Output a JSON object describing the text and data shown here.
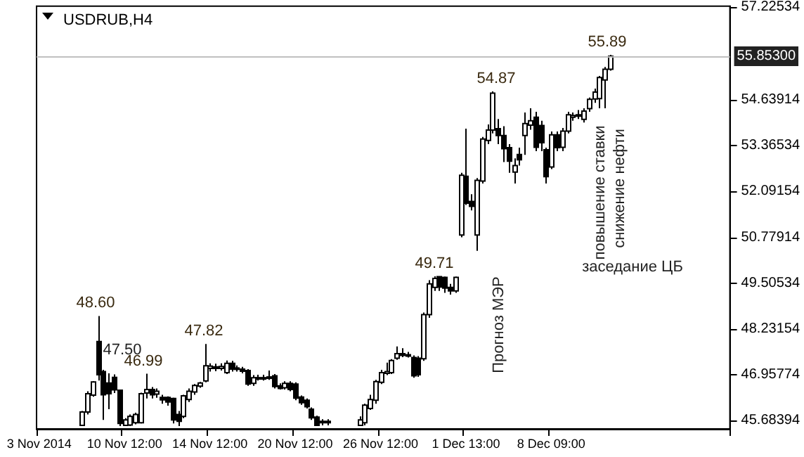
{
  "chart_data": {
    "type": "candlestick",
    "title": "USDRUB,H4",
    "categories": [
      "3 Nov 2014",
      null,
      null,
      null,
      null,
      null,
      null,
      null,
      null,
      null,
      null,
      null,
      null,
      null,
      null,
      null,
      "10 Nov 12:00",
      null,
      null,
      null,
      null,
      null,
      null,
      null,
      null,
      null,
      null,
      null,
      null,
      null,
      null,
      null,
      "14 Nov 12:00",
      null,
      null,
      null,
      null,
      null,
      null,
      null,
      null,
      null,
      null,
      null,
      null,
      null,
      null,
      null,
      "20 Nov 12:00",
      null,
      null,
      null,
      null,
      null,
      null,
      null,
      null,
      null,
      null,
      null,
      null,
      null,
      null,
      null,
      "26 Nov 12:00",
      null,
      null,
      null,
      null,
      null,
      null,
      null,
      null,
      null,
      null,
      null,
      null,
      null,
      null,
      null,
      "1 Dec 13:00",
      null,
      null,
      null,
      null,
      null,
      null,
      null,
      null,
      null,
      null,
      null,
      null,
      null,
      null,
      null,
      "8 Dec 09:00",
      null,
      null,
      null,
      null,
      null,
      null,
      null,
      null,
      null,
      null,
      null,
      null,
      null,
      null,
      null,
      null,
      null,
      null,
      null,
      null,
      null,
      null,
      null,
      null,
      null,
      null,
      null,
      null,
      null,
      null,
      null,
      null,
      null
    ],
    "ohlc": [
      null,
      null,
      null,
      null,
      null,
      null,
      null,
      null,
      [
        45.55,
        45.95,
        45.53,
        45.92
      ],
      [
        45.92,
        46.5,
        45.85,
        46.43
      ],
      [
        46.39,
        46.78,
        46.35,
        46.76
      ],
      [
        47.89,
        48.6,
        46.8,
        46.96
      ],
      [
        47.05,
        47.1,
        45.7,
        46.4
      ],
      [
        46.73,
        47.0,
        46.0,
        46.43
      ],
      [
        46.89,
        46.97,
        46.45,
        46.54
      ],
      [
        46.53,
        46.55,
        45.53,
        45.6
      ],
      [
        45.55,
        45.75,
        45.53,
        45.7
      ],
      [
        45.56,
        45.85,
        45.53,
        45.8
      ],
      [
        45.62,
        45.9,
        45.58,
        45.85
      ],
      [
        45.62,
        46.46,
        45.6,
        46.43
      ],
      [
        46.45,
        46.99,
        46.3,
        46.55
      ],
      [
        46.55,
        46.62,
        46.3,
        46.4
      ],
      [
        46.42,
        46.58,
        46.32,
        46.5
      ],
      [
        46.33,
        46.4,
        46.15,
        46.26
      ],
      [
        46.33,
        46.36,
        46.1,
        46.2
      ],
      [
        46.3,
        46.32,
        45.6,
        45.7
      ],
      [
        45.85,
        45.95,
        45.53,
        45.66
      ],
      [
        45.8,
        46.4,
        45.75,
        46.37
      ],
      [
        46.27,
        46.58,
        46.2,
        46.5
      ],
      [
        46.48,
        46.7,
        46.4,
        46.66
      ],
      [
        46.64,
        46.76,
        46.6,
        46.73
      ],
      [
        46.79,
        47.82,
        46.75,
        47.21
      ],
      [
        47.14,
        47.28,
        47.05,
        47.2
      ],
      [
        47.18,
        47.27,
        47.06,
        47.14
      ],
      [
        47.14,
        47.28,
        47.08,
        47.19
      ],
      [
        47.02,
        47.36,
        46.98,
        47.28
      ],
      [
        47.28,
        47.35,
        47.05,
        47.12
      ],
      [
        47.15,
        47.22,
        47.05,
        47.12
      ],
      [
        47.12,
        47.18,
        47.0,
        47.06
      ],
      [
        47.08,
        47.12,
        46.65,
        46.7
      ],
      [
        46.72,
        46.95,
        46.65,
        46.88
      ],
      [
        46.86,
        46.96,
        46.8,
        46.88
      ],
      [
        46.88,
        46.96,
        46.8,
        46.86
      ],
      [
        46.88,
        47.08,
        46.82,
        46.9
      ],
      [
        46.93,
        46.98,
        46.58,
        46.63
      ],
      [
        46.65,
        46.72,
        46.55,
        46.58
      ],
      [
        46.6,
        46.78,
        46.55,
        46.72
      ],
      [
        46.72,
        46.78,
        46.5,
        46.55
      ],
      [
        46.7,
        46.75,
        46.25,
        46.31
      ],
      [
        46.34,
        46.38,
        46.12,
        46.18
      ],
      [
        46.25,
        46.3,
        46.02,
        46.07
      ],
      [
        46.0,
        46.05,
        45.7,
        45.76
      ],
      [
        45.78,
        45.82,
        45.53,
        45.55
      ],
      [
        45.62,
        45.72,
        45.55,
        45.66
      ],
      [
        45.66,
        45.72,
        45.55,
        45.62
      ],
      null,
      null,
      null,
      null,
      null,
      [
        45.55,
        45.8,
        45.53,
        45.7
      ],
      [
        45.62,
        46.15,
        45.55,
        46.11
      ],
      [
        46.02,
        46.4,
        45.98,
        46.27
      ],
      [
        46.25,
        46.82,
        46.15,
        46.77
      ],
      [
        46.75,
        47.1,
        46.7,
        47.02
      ],
      [
        47.0,
        47.3,
        46.95,
        47.05
      ],
      [
        47.02,
        47.4,
        46.98,
        47.36
      ],
      [
        47.42,
        47.75,
        47.38,
        47.55
      ],
      [
        47.55,
        47.7,
        47.45,
        47.5
      ],
      [
        47.5,
        47.6,
        47.44,
        47.52
      ],
      [
        47.44,
        47.5,
        46.88,
        46.93
      ],
      [
        47.42,
        47.48,
        46.9,
        46.96
      ],
      [
        47.41,
        48.7,
        47.35,
        48.64
      ],
      [
        48.64,
        49.6,
        48.55,
        49.5
      ],
      [
        49.4,
        49.71,
        49.3,
        49.65
      ],
      [
        49.7,
        49.71,
        49.3,
        49.41
      ],
      [
        49.68,
        49.7,
        49.25,
        49.38
      ],
      [
        49.4,
        49.5,
        49.2,
        49.3
      ],
      [
        49.3,
        49.7,
        49.25,
        49.68
      ],
      [
        50.86,
        52.6,
        50.8,
        52.53
      ],
      [
        52.5,
        53.83,
        51.7,
        51.75
      ],
      [
        51.8,
        52.0,
        51.55,
        51.66
      ],
      [
        50.86,
        52.45,
        50.42,
        52.39
      ],
      [
        52.37,
        53.6,
        52.3,
        53.54
      ],
      [
        53.5,
        53.95,
        53.4,
        53.79
      ],
      [
        53.79,
        54.87,
        53.7,
        54.82
      ],
      [
        53.83,
        54.1,
        53.4,
        53.64
      ],
      [
        53.64,
        53.9,
        52.9,
        53.27
      ],
      [
        53.3,
        53.4,
        52.6,
        52.92
      ],
      [
        52.62,
        53.0,
        52.3,
        52.8
      ],
      [
        53.11,
        53.3,
        52.8,
        52.96
      ],
      [
        53.64,
        54.28,
        53.1,
        53.97
      ],
      [
        53.93,
        54.4,
        53.8,
        54.05
      ],
      [
        54.15,
        54.3,
        53.2,
        53.31
      ],
      [
        53.92,
        54.05,
        53.2,
        53.44
      ],
      [
        53.24,
        53.3,
        52.3,
        52.49
      ],
      [
        52.76,
        53.75,
        52.7,
        53.66
      ],
      [
        53.66,
        53.75,
        53.2,
        53.3
      ],
      [
        53.31,
        53.85,
        53.2,
        53.76
      ],
      [
        53.76,
        54.3,
        53.7,
        54.22
      ],
      [
        54.15,
        54.28,
        54.05,
        54.2
      ],
      [
        54.18,
        54.35,
        54.1,
        54.22
      ],
      [
        54.09,
        54.4,
        54.0,
        54.32
      ],
      [
        54.39,
        54.7,
        54.3,
        54.65
      ],
      [
        54.66,
        54.95,
        54.55,
        54.85
      ],
      [
        54.67,
        55.3,
        54.4,
        55.26
      ],
      [
        55.19,
        55.55,
        54.4,
        55.49
      ],
      [
        55.49,
        55.89,
        55.45,
        55.85
      ],
      null,
      null,
      null,
      null,
      null,
      null,
      null,
      null,
      null,
      null,
      null,
      null,
      null,
      null,
      null,
      null,
      null,
      null,
      null,
      null,
      null,
      null
    ],
    "ylim": [
      45.45,
      57.25
    ],
    "yticks": [
      45.68394,
      46.95774,
      48.23154,
      49.50534,
      50.77914,
      52.09154,
      53.36534,
      54.63914,
      57.22534
    ],
    "ref_lines": [
      {
        "axis": "y",
        "value": 55.853,
        "label": "55.85300",
        "color": "#c0c0c0"
      }
    ],
    "annotations": [
      {
        "text": "48.60",
        "y": 48.6
      },
      "47.50",
      {
        "text": "46.99",
        "y": 46.99
      },
      {
        "text": "47.82",
        "y": 47.82
      },
      {
        "text": "49.71",
        "y": 49.71
      },
      {
        "text": "54.87",
        "y": 54.87
      },
      {
        "text": "55.89",
        "y": 55.89
      },
      "Прогноз МЭР",
      "повышение ставки",
      "снижение нефти",
      "заседание ЦБ"
    ]
  }
}
